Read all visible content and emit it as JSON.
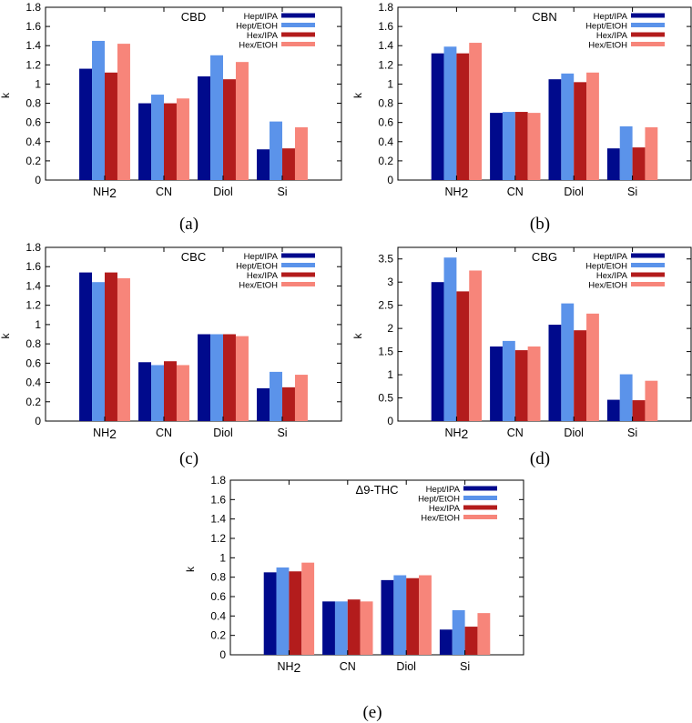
{
  "legend_series": [
    "Hept/IPA",
    "Hept/EtOH",
    "Hex/IPA",
    "Hex/EtOH"
  ],
  "colors": [
    "#000a8c",
    "#5b93ea",
    "#b31c1c",
    "#f7857a"
  ],
  "chart_data": [
    {
      "type": "bar",
      "title": "CBD",
      "caption": "(a)",
      "ylabel": "k",
      "xlabel": "",
      "ylim": [
        0,
        1.8
      ],
      "yticks": [
        "0",
        "0.2",
        "0.4",
        "0.6",
        "0.8",
        "1",
        "1.2",
        "1.4",
        "1.6",
        "1.8"
      ],
      "categories": [
        "NH2",
        "CN",
        "Diol",
        "Si"
      ],
      "series": [
        {
          "name": "Hept/IPA",
          "values": [
            1.16,
            0.8,
            1.08,
            0.32
          ]
        },
        {
          "name": "Hept/EtOH",
          "values": [
            1.45,
            0.89,
            1.3,
            0.61
          ]
        },
        {
          "name": "Hex/IPA",
          "values": [
            1.12,
            0.8,
            1.05,
            0.33
          ]
        },
        {
          "name": "Hex/EtOH",
          "values": [
            1.42,
            0.85,
            1.23,
            0.55
          ]
        }
      ]
    },
    {
      "type": "bar",
      "title": "CBN",
      "caption": "(b)",
      "ylabel": "k",
      "xlabel": "",
      "ylim": [
        0,
        1.8
      ],
      "yticks": [
        "0",
        "0.2",
        "0.4",
        "0.6",
        "0.8",
        "1",
        "1.2",
        "1.4",
        "1.6",
        "1.8"
      ],
      "categories": [
        "NH2",
        "CN",
        "Diol",
        "Si"
      ],
      "series": [
        {
          "name": "Hept/IPA",
          "values": [
            1.32,
            0.7,
            1.05,
            0.33
          ]
        },
        {
          "name": "Hept/EtOH",
          "values": [
            1.39,
            0.71,
            1.11,
            0.56
          ]
        },
        {
          "name": "Hex/IPA",
          "values": [
            1.32,
            0.71,
            1.02,
            0.34
          ]
        },
        {
          "name": "Hex/EtOH",
          "values": [
            1.43,
            0.7,
            1.12,
            0.55
          ]
        }
      ]
    },
    {
      "type": "bar",
      "title": "CBC",
      "caption": "(c)",
      "ylabel": "k",
      "xlabel": "",
      "ylim": [
        0,
        1.8
      ],
      "yticks": [
        "0",
        "0.2",
        "0.4",
        "0.6",
        "0.8",
        "1",
        "1.2",
        "1.4",
        "1.6",
        "1.8"
      ],
      "categories": [
        "NH2",
        "CN",
        "Diol",
        "Si"
      ],
      "series": [
        {
          "name": "Hept/IPA",
          "values": [
            1.54,
            0.61,
            0.9,
            0.34
          ]
        },
        {
          "name": "Hept/EtOH",
          "values": [
            1.44,
            0.58,
            0.9,
            0.51
          ]
        },
        {
          "name": "Hex/IPA",
          "values": [
            1.54,
            0.62,
            0.9,
            0.35
          ]
        },
        {
          "name": "Hex/EtOH",
          "values": [
            1.48,
            0.58,
            0.88,
            0.48
          ]
        }
      ]
    },
    {
      "type": "bar",
      "title": "CBG",
      "caption": "(d)",
      "ylabel": "k",
      "xlabel": "",
      "ylim": [
        0,
        3.75
      ],
      "yticks": [
        "0",
        "0.5",
        "1",
        "1.5",
        "2",
        "2.5",
        "3",
        "3.5"
      ],
      "categories": [
        "NH2",
        "CN",
        "Diol",
        "Si"
      ],
      "series": [
        {
          "name": "Hept/IPA",
          "values": [
            3.0,
            1.61,
            2.08,
            0.46
          ]
        },
        {
          "name": "Hept/EtOH",
          "values": [
            3.53,
            1.73,
            2.54,
            1.01
          ]
        },
        {
          "name": "Hex/IPA",
          "values": [
            2.8,
            1.53,
            1.96,
            0.45
          ]
        },
        {
          "name": "Hex/EtOH",
          "values": [
            3.25,
            1.61,
            2.32,
            0.87
          ]
        }
      ]
    },
    {
      "type": "bar",
      "title": "Δ9-THC",
      "caption": "(e)",
      "ylabel": "k",
      "xlabel": "",
      "ylim": [
        0,
        1.8
      ],
      "yticks": [
        "0",
        "0.2",
        "0.4",
        "0.6",
        "0.8",
        "1",
        "1.2",
        "1.4",
        "1.6",
        "1.8"
      ],
      "categories": [
        "NH2",
        "CN",
        "Diol",
        "Si"
      ],
      "series": [
        {
          "name": "Hept/IPA",
          "values": [
            0.85,
            0.55,
            0.77,
            0.26
          ]
        },
        {
          "name": "Hept/EtOH",
          "values": [
            0.9,
            0.55,
            0.82,
            0.46
          ]
        },
        {
          "name": "Hex/IPA",
          "values": [
            0.86,
            0.57,
            0.79,
            0.29
          ]
        },
        {
          "name": "Hex/EtOH",
          "values": [
            0.95,
            0.55,
            0.82,
            0.43
          ]
        }
      ]
    }
  ]
}
